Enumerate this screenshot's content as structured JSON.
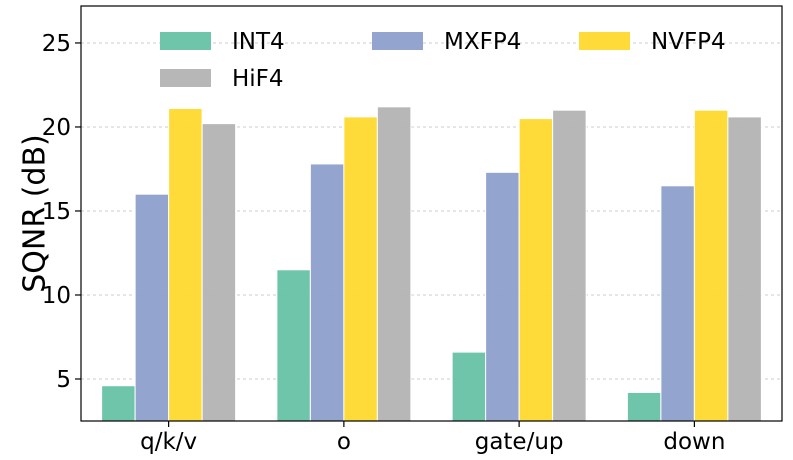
{
  "chart_data": {
    "type": "bar",
    "categories": [
      "q/k/v",
      "o",
      "gate/up",
      "down"
    ],
    "series": [
      {
        "name": "INT4",
        "color": "#66c2a5",
        "values": [
          4.6,
          11.5,
          6.6,
          4.2
        ]
      },
      {
        "name": "MXFP4",
        "color": "#8da0cb",
        "values": [
          16.0,
          17.8,
          17.3,
          16.5
        ]
      },
      {
        "name": "NVFP4",
        "color": "#ffd92f",
        "values": [
          21.1,
          20.6,
          20.5,
          21.0
        ]
      },
      {
        "name": "HiF4",
        "color": "#b3b3b3",
        "values": [
          20.2,
          21.2,
          21.0,
          20.6
        ]
      }
    ],
    "title": "",
    "xlabel": "",
    "ylabel": "SQNR (dB)",
    "ylim": [
      2.5,
      27.2
    ],
    "yticks": [
      5,
      10,
      15,
      20,
      25
    ],
    "grid": true,
    "legend_position": "top"
  }
}
